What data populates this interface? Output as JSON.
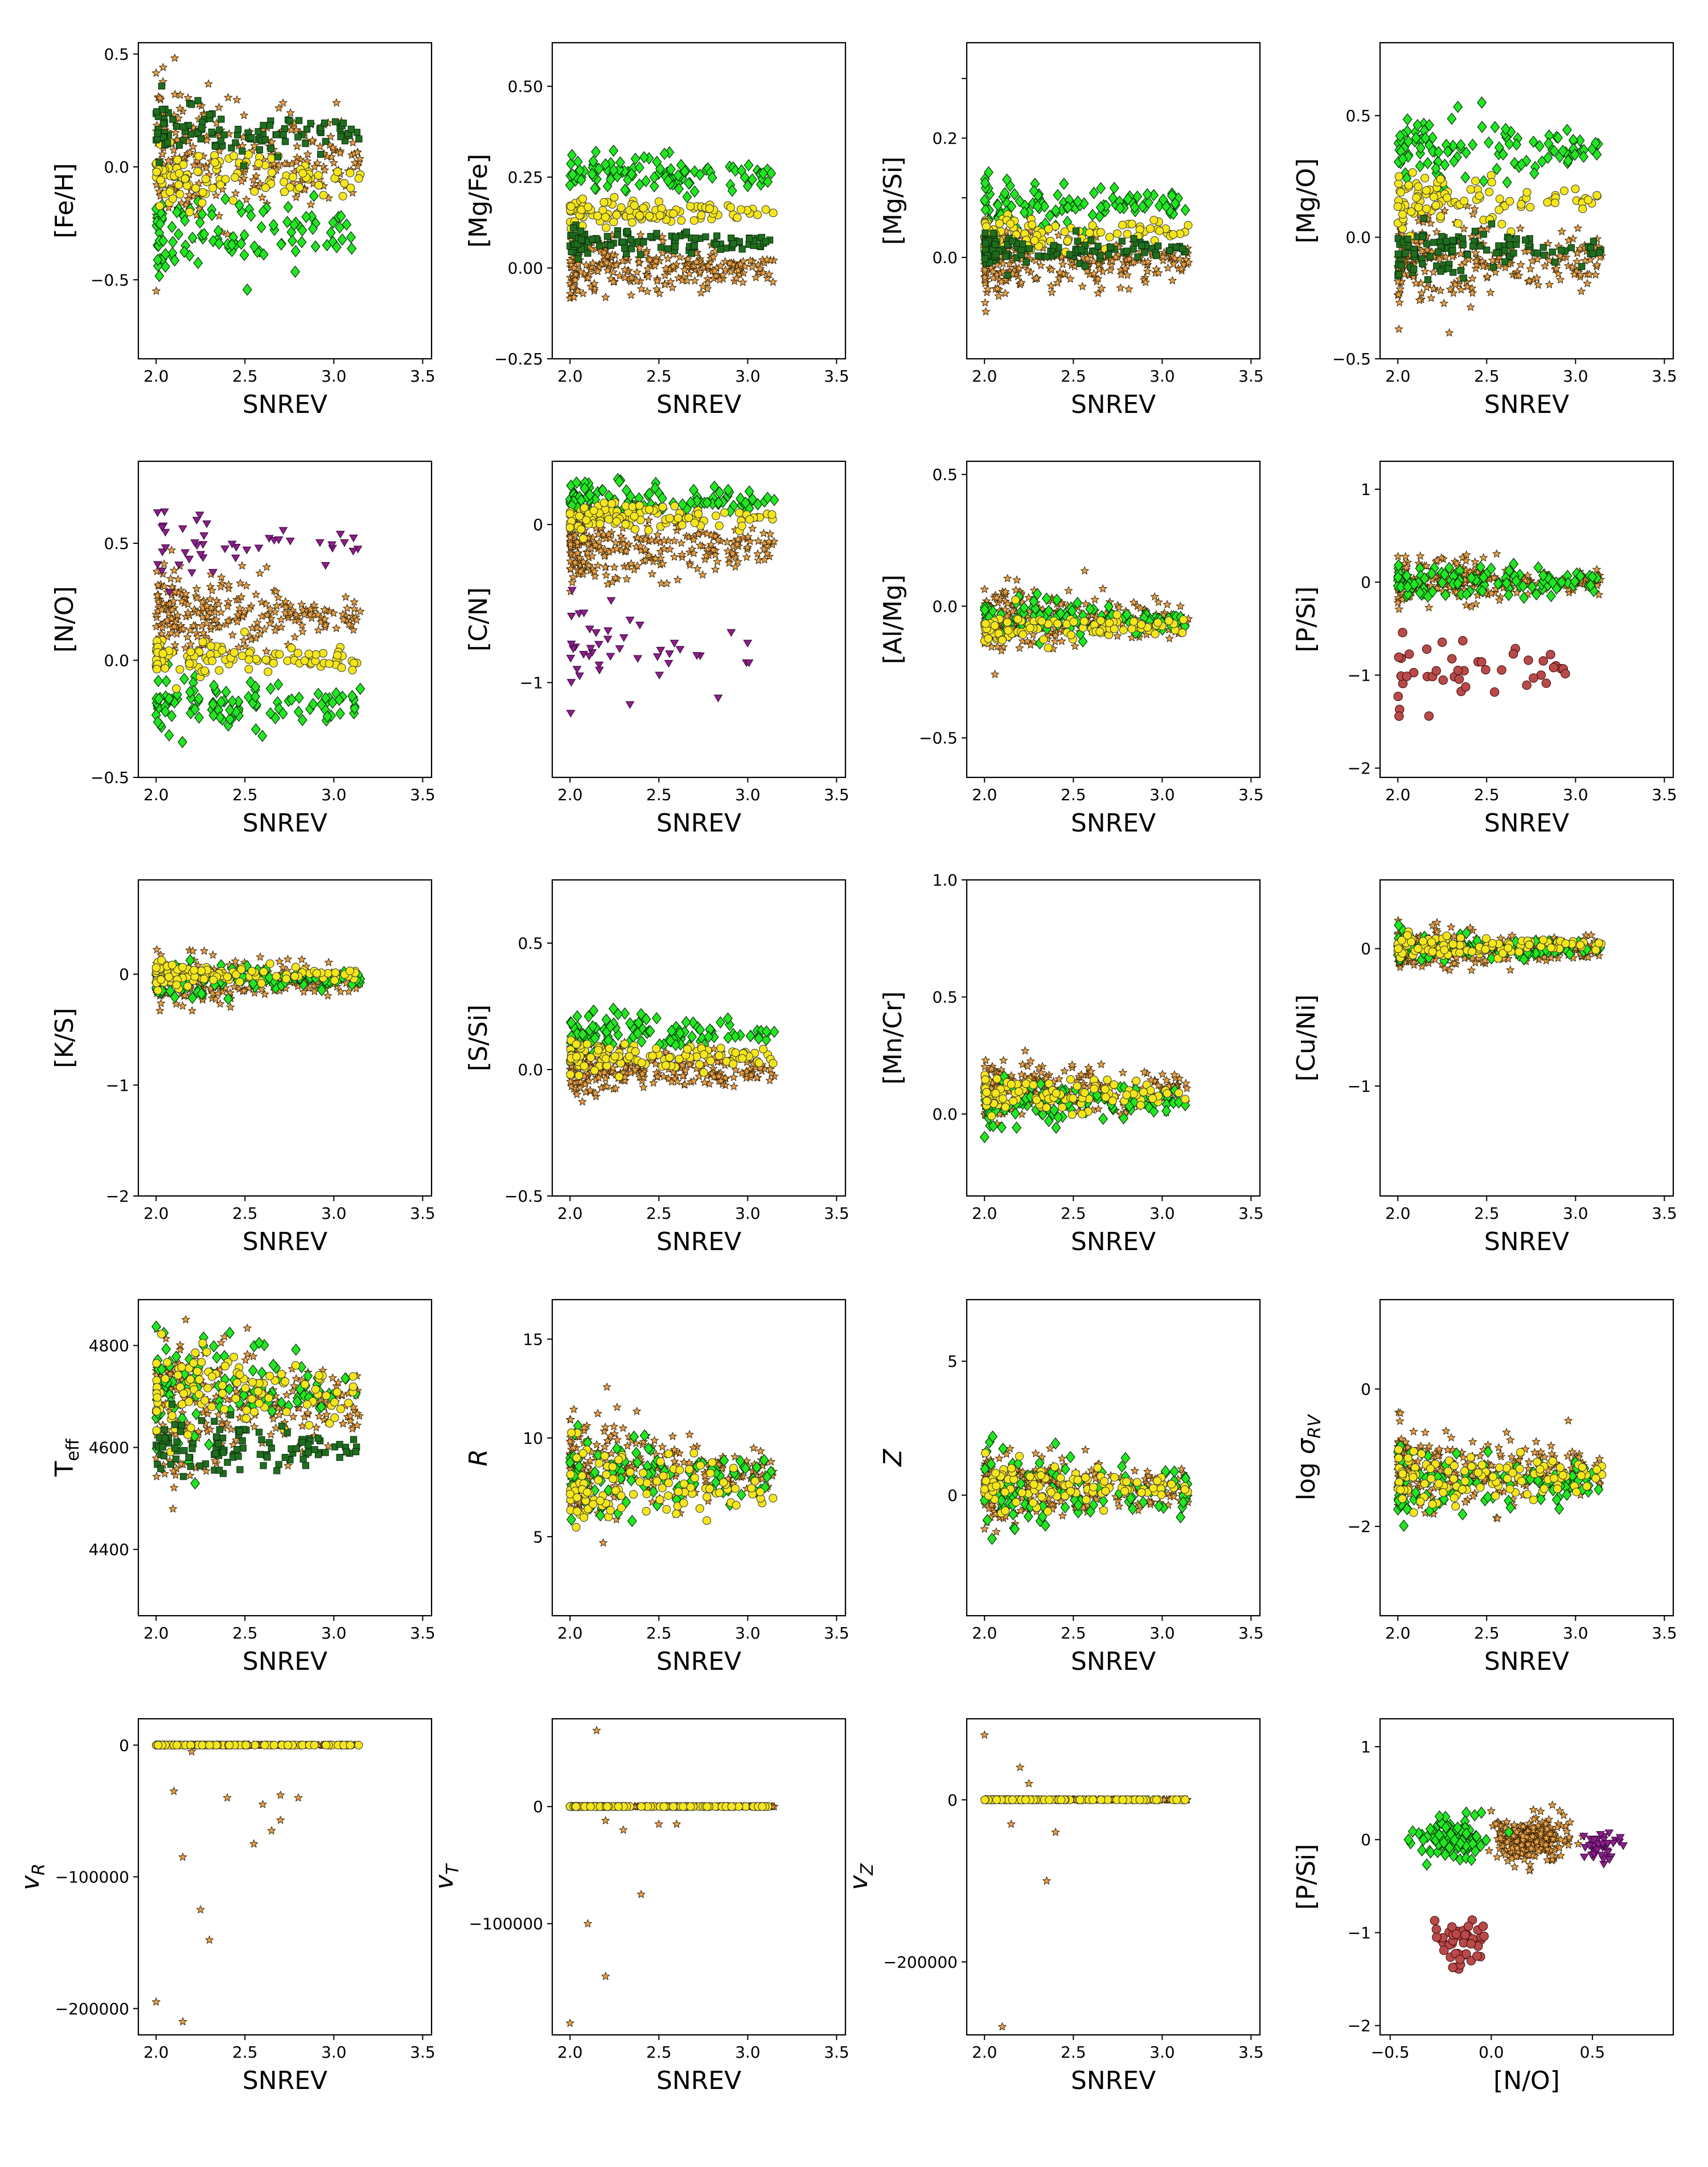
{
  "chart_data": [
    {
      "type": "scatter",
      "xlabel": "SNREV",
      "ylabel": "[Fe/H]",
      "xlim": [
        1.9,
        3.55
      ],
      "ylim": [
        -0.85,
        0.55
      ],
      "xticks": [
        2.0,
        2.5,
        3.0,
        3.5
      ],
      "yticks": [
        -0.5,
        0.0,
        0.5
      ],
      "ytick_labels": [
        "−0.5",
        "0.0",
        "0.5"
      ],
      "series_summary": [
        {
          "marker": "star-orange",
          "y_center": 0.05,
          "y_spread": 0.3
        },
        {
          "marker": "diamond-green",
          "y_center": -0.3,
          "y_spread": 0.2
        },
        {
          "marker": "circle-yellow",
          "y_center": -0.05,
          "y_spread": 0.12
        },
        {
          "marker": "square-darkgreen",
          "y_center": 0.15,
          "y_spread": 0.12
        }
      ]
    },
    {
      "type": "scatter",
      "xlabel": "SNREV",
      "ylabel": "[Mg/Fe]",
      "xlim": [
        1.9,
        3.55
      ],
      "ylim": [
        -0.25,
        0.62
      ],
      "xticks": [
        2.0,
        2.5,
        3.0,
        3.5
      ],
      "yticks": [
        -0.25,
        0.0,
        0.25,
        0.5
      ],
      "ytick_labels": [
        "−0.25",
        "0.00",
        "0.25",
        "0.50"
      ],
      "series_summary": [
        {
          "marker": "star-orange",
          "y_center": 0.0,
          "y_spread": 0.08
        },
        {
          "marker": "diamond-green",
          "y_center": 0.26,
          "y_spread": 0.06
        },
        {
          "marker": "circle-yellow",
          "y_center": 0.15,
          "y_spread": 0.04
        },
        {
          "marker": "square-darkgreen",
          "y_center": 0.07,
          "y_spread": 0.04
        }
      ]
    },
    {
      "type": "scatter",
      "xlabel": "SNREV",
      "ylabel": "[Mg/Si]",
      "xlim": [
        1.9,
        3.55
      ],
      "ylim": [
        -0.17,
        0.36
      ],
      "xticks": [
        2.0,
        2.5,
        3.0,
        3.5
      ],
      "yticks": [
        0.0,
        0.1,
        0.2,
        0.3
      ],
      "ytick_labels": [
        "0.0",
        "",
        "0.2",
        ""
      ],
      "series_summary": [
        {
          "marker": "star-orange",
          "y_center": -0.01,
          "y_spread": 0.05
        },
        {
          "marker": "diamond-green",
          "y_center": 0.09,
          "y_spread": 0.04
        },
        {
          "marker": "circle-yellow",
          "y_center": 0.04,
          "y_spread": 0.03
        },
        {
          "marker": "square-darkgreen",
          "y_center": 0.01,
          "y_spread": 0.03
        }
      ]
    },
    {
      "type": "scatter",
      "xlabel": "SNREV",
      "ylabel": "[Mg/O]",
      "xlim": [
        1.9,
        3.55
      ],
      "ylim": [
        -0.5,
        0.8
      ],
      "xticks": [
        2.0,
        2.5,
        3.0,
        3.5
      ],
      "yticks": [
        -0.5,
        0.0,
        0.5
      ],
      "ytick_labels": [
        "−0.5",
        "0.0",
        "0.5"
      ],
      "series_summary": [
        {
          "marker": "star-orange",
          "y_center": -0.1,
          "y_spread": 0.2
        },
        {
          "marker": "diamond-green",
          "y_center": 0.35,
          "y_spread": 0.15
        },
        {
          "marker": "circle-yellow",
          "y_center": 0.15,
          "y_spread": 0.1
        },
        {
          "marker": "square-darkgreen",
          "y_center": -0.05,
          "y_spread": 0.1
        }
      ]
    },
    {
      "type": "scatter",
      "xlabel": "SNREV",
      "ylabel": "[N/O]",
      "xlim": [
        1.9,
        3.55
      ],
      "ylim": [
        -0.5,
        0.85
      ],
      "xticks": [
        2.0,
        2.5,
        3.0,
        3.5
      ],
      "yticks": [
        -0.5,
        0.0,
        0.5
      ],
      "ytick_labels": [
        "−0.5",
        "0.0",
        "0.5"
      ],
      "series_summary": [
        {
          "marker": "star-orange",
          "y_center": 0.2,
          "y_spread": 0.18
        },
        {
          "marker": "diamond-green",
          "y_center": -0.18,
          "y_spread": 0.12
        },
        {
          "marker": "circle-yellow",
          "y_center": 0.0,
          "y_spread": 0.08
        },
        {
          "marker": "triangle-purple",
          "y_center": 0.5,
          "y_spread": 0.15
        }
      ]
    },
    {
      "type": "scatter",
      "xlabel": "SNREV",
      "ylabel": "[C/N]",
      "xlim": [
        1.9,
        3.55
      ],
      "ylim": [
        -1.6,
        0.4
      ],
      "xticks": [
        2.0,
        2.5,
        3.0,
        3.5
      ],
      "yticks": [
        -1.0,
        0.0
      ],
      "ytick_labels": [
        "−1",
        "0"
      ],
      "series_summary": [
        {
          "marker": "star-orange",
          "y_center": -0.15,
          "y_spread": 0.22
        },
        {
          "marker": "diamond-green",
          "y_center": 0.15,
          "y_spread": 0.12
        },
        {
          "marker": "circle-yellow",
          "y_center": 0.05,
          "y_spread": 0.1
        },
        {
          "marker": "triangle-purple",
          "y_center": -0.8,
          "y_spread": 0.3
        }
      ]
    },
    {
      "type": "scatter",
      "xlabel": "SNREV",
      "ylabel": "[Al/Mg]",
      "xlim": [
        1.9,
        3.55
      ],
      "ylim": [
        -0.65,
        0.55
      ],
      "xticks": [
        2.0,
        2.5,
        3.0,
        3.5
      ],
      "yticks": [
        -0.5,
        0.0,
        0.5
      ],
      "ytick_labels": [
        "−0.5",
        "0.0",
        "0.5"
      ],
      "series_summary": [
        {
          "marker": "star-orange",
          "y_center": -0.05,
          "y_spread": 0.12
        },
        {
          "marker": "diamond-green",
          "y_center": -0.05,
          "y_spread": 0.08
        },
        {
          "marker": "circle-yellow",
          "y_center": -0.08,
          "y_spread": 0.06
        }
      ]
    },
    {
      "type": "scatter",
      "xlabel": "SNREV",
      "ylabel": "[P/Si]",
      "xlim": [
        1.9,
        3.55
      ],
      "ylim": [
        -2.1,
        1.3
      ],
      "xticks": [
        2.0,
        2.5,
        3.0,
        3.5
      ],
      "yticks": [
        -2.0,
        -1.0,
        0.0,
        1.0
      ],
      "ytick_labels": [
        "−2",
        "−1",
        "0",
        "1"
      ],
      "series_summary": [
        {
          "marker": "star-orange",
          "y_center": 0.0,
          "y_spread": 0.25
        },
        {
          "marker": "diamond-green",
          "y_center": 0.0,
          "y_spread": 0.2
        },
        {
          "marker": "circle-brown",
          "y_center": -1.0,
          "y_spread": 0.4
        }
      ]
    },
    {
      "type": "scatter",
      "xlabel": "SNREV",
      "ylabel": "[K/S]",
      "xlim": [
        1.9,
        3.55
      ],
      "ylim": [
        -2.0,
        0.85
      ],
      "xticks": [
        2.0,
        2.5,
        3.0,
        3.5
      ],
      "yticks": [
        -2.0,
        -1.0,
        0.0
      ],
      "ytick_labels": [
        "−2",
        "−1",
        "0"
      ],
      "series_summary": [
        {
          "marker": "star-orange",
          "y_center": -0.05,
          "y_spread": 0.2
        },
        {
          "marker": "diamond-green",
          "y_center": -0.05,
          "y_spread": 0.15
        },
        {
          "marker": "circle-yellow",
          "y_center": 0.0,
          "y_spread": 0.1
        }
      ]
    },
    {
      "type": "scatter",
      "xlabel": "SNREV",
      "ylabel": "[S/Si]",
      "xlim": [
        1.9,
        3.55
      ],
      "ylim": [
        -0.5,
        0.75
      ],
      "xticks": [
        2.0,
        2.5,
        3.0,
        3.5
      ],
      "yticks": [
        -0.5,
        0.0,
        0.5
      ],
      "ytick_labels": [
        "−0.5",
        "0.0",
        "0.5"
      ],
      "series_summary": [
        {
          "marker": "star-orange",
          "y_center": 0.0,
          "y_spread": 0.1
        },
        {
          "marker": "diamond-green",
          "y_center": 0.15,
          "y_spread": 0.08
        },
        {
          "marker": "circle-yellow",
          "y_center": 0.05,
          "y_spread": 0.06
        }
      ]
    },
    {
      "type": "scatter",
      "xlabel": "SNREV",
      "ylabel": "[Mn/Cr]",
      "xlim": [
        1.9,
        3.55
      ],
      "ylim": [
        -0.35,
        1.0
      ],
      "xticks": [
        2.0,
        2.5,
        3.0,
        3.5
      ],
      "yticks": [
        0.0,
        0.5,
        1.0
      ],
      "ytick_labels": [
        "0.0",
        "0.5",
        "1.0"
      ],
      "series_summary": [
        {
          "marker": "star-orange",
          "y_center": 0.1,
          "y_spread": 0.12
        },
        {
          "marker": "diamond-green",
          "y_center": 0.05,
          "y_spread": 0.1
        },
        {
          "marker": "circle-yellow",
          "y_center": 0.08,
          "y_spread": 0.08
        }
      ]
    },
    {
      "type": "scatter",
      "xlabel": "SNREV",
      "ylabel": "[Cu/Ni]",
      "xlim": [
        1.9,
        3.55
      ],
      "ylim": [
        -1.8,
        0.5
      ],
      "xticks": [
        2.0,
        2.5,
        3.0,
        3.5
      ],
      "yticks": [
        -1.0,
        0.0
      ],
      "ytick_labels": [
        "−1",
        "0"
      ],
      "series_summary": [
        {
          "marker": "star-orange",
          "y_center": 0.0,
          "y_spread": 0.15
        },
        {
          "marker": "diamond-green",
          "y_center": 0.0,
          "y_spread": 0.1
        },
        {
          "marker": "circle-yellow",
          "y_center": 0.02,
          "y_spread": 0.08
        }
      ]
    },
    {
      "type": "scatter",
      "xlabel": "SNREV",
      "ylabel": "T_eff",
      "xlim": [
        1.9,
        3.55
      ],
      "ylim": [
        4270,
        4890
      ],
      "xticks": [
        2.0,
        2.5,
        3.0,
        3.5
      ],
      "yticks": [
        4400,
        4600,
        4800
      ],
      "ytick_labels": [
        "4400",
        "4600",
        "4800"
      ],
      "series_summary": [
        {
          "marker": "star-orange",
          "y_center": 4680,
          "y_spread": 130
        },
        {
          "marker": "diamond-green",
          "y_center": 4720,
          "y_spread": 110
        },
        {
          "marker": "circle-yellow",
          "y_center": 4700,
          "y_spread": 90
        },
        {
          "marker": "square-darkgreen",
          "y_center": 4600,
          "y_spread": 60
        }
      ]
    },
    {
      "type": "scatter",
      "xlabel": "SNREV",
      "ylabel": "R",
      "xlim": [
        1.9,
        3.55
      ],
      "ylim": [
        1.0,
        17.0
      ],
      "xticks": [
        2.0,
        2.5,
        3.0,
        3.5
      ],
      "yticks": [
        5,
        10,
        15
      ],
      "ytick_labels": [
        "5",
        "10",
        "15"
      ],
      "series_summary": [
        {
          "marker": "star-orange",
          "y_center": 8.5,
          "y_spread": 2.5
        },
        {
          "marker": "diamond-green",
          "y_center": 8.0,
          "y_spread": 2.0
        },
        {
          "marker": "circle-yellow",
          "y_center": 7.5,
          "y_spread": 1.8
        }
      ]
    },
    {
      "type": "scatter",
      "xlabel": "SNREV",
      "ylabel": "Z",
      "xlim": [
        1.9,
        3.55
      ],
      "ylim": [
        -4.5,
        7.3
      ],
      "xticks": [
        2.0,
        2.5,
        3.0,
        3.5
      ],
      "yticks": [
        0,
        5
      ],
      "ytick_labels": [
        "0",
        "5"
      ],
      "series_summary": [
        {
          "marker": "star-orange",
          "y_center": 0.3,
          "y_spread": 1.2
        },
        {
          "marker": "diamond-green",
          "y_center": 0.2,
          "y_spread": 1.5
        },
        {
          "marker": "circle-yellow",
          "y_center": 0.3,
          "y_spread": 0.8
        }
      ]
    },
    {
      "type": "scatter",
      "xlabel": "SNREV",
      "ylabel": "log σ_RV",
      "xlim": [
        1.9,
        3.55
      ],
      "ylim": [
        -3.3,
        1.3
      ],
      "xticks": [
        2.0,
        2.5,
        3.0,
        3.5
      ],
      "yticks": [
        -2,
        0
      ],
      "ytick_labels": [
        "−2",
        "0"
      ],
      "series_summary": [
        {
          "marker": "star-orange",
          "y_center": -1.2,
          "y_spread": 0.6
        },
        {
          "marker": "diamond-green",
          "y_center": -1.4,
          "y_spread": 0.5
        },
        {
          "marker": "circle-yellow",
          "y_center": -1.3,
          "y_spread": 0.4
        }
      ]
    },
    {
      "type": "scatter",
      "xlabel": "SNREV",
      "ylabel": "v_R",
      "xlim": [
        1.9,
        3.55
      ],
      "ylim": [
        -220000,
        20000
      ],
      "xticks": [
        2.0,
        2.5,
        3.0,
        3.5
      ],
      "yticks": [
        -200000,
        -100000,
        0
      ],
      "ytick_labels": [
        "−200000",
        "−100000",
        "0"
      ],
      "series_summary": [
        {
          "marker": "star-orange",
          "y_center": 0,
          "y_spread": 0
        },
        {
          "marker": "circle-yellow",
          "y_center": 0,
          "y_spread": 0
        }
      ],
      "outliers": [
        [
          2.0,
          -195000
        ],
        [
          2.15,
          -210000
        ],
        [
          2.15,
          -85000
        ],
        [
          2.2,
          -5000
        ],
        [
          2.1,
          -35000
        ],
        [
          2.25,
          -125000
        ],
        [
          2.3,
          -148000
        ],
        [
          2.4,
          -40000
        ],
        [
          2.55,
          -75000
        ],
        [
          2.6,
          -45000
        ],
        [
          2.65,
          -65000
        ],
        [
          2.7,
          -57000
        ],
        [
          2.7,
          -38000
        ],
        [
          2.8,
          -40000
        ]
      ]
    },
    {
      "type": "scatter",
      "xlabel": "SNREV",
      "ylabel": "v_T",
      "xlim": [
        1.9,
        3.55
      ],
      "ylim": [
        -195000,
        75000
      ],
      "xticks": [
        2.0,
        2.5,
        3.0,
        3.5
      ],
      "yticks": [
        -100000,
        0
      ],
      "ytick_labels": [
        "−100000",
        "0"
      ],
      "series_summary": [
        {
          "marker": "star-orange",
          "y_center": 0,
          "y_spread": 0
        },
        {
          "marker": "circle-yellow",
          "y_center": 0,
          "y_spread": 0
        }
      ],
      "outliers": [
        [
          2.15,
          65000
        ],
        [
          2.1,
          -100000
        ],
        [
          2.2,
          -145000
        ],
        [
          2.0,
          -185000
        ],
        [
          2.4,
          -75000
        ],
        [
          2.3,
          -20000
        ],
        [
          2.5,
          -15000
        ],
        [
          2.6,
          -15000
        ],
        [
          2.2,
          -12000
        ]
      ]
    },
    {
      "type": "scatter",
      "xlabel": "SNREV",
      "ylabel": "v_Z",
      "xlim": [
        1.9,
        3.55
      ],
      "ylim": [
        -290000,
        100000
      ],
      "xticks": [
        2.0,
        2.5,
        3.0,
        3.5
      ],
      "yticks": [
        -200000,
        0
      ],
      "ytick_labels": [
        "−200000",
        "0"
      ],
      "series_summary": [
        {
          "marker": "star-orange",
          "y_center": 0,
          "y_spread": 0
        },
        {
          "marker": "circle-yellow",
          "y_center": 0,
          "y_spread": 0
        }
      ],
      "outliers": [
        [
          2.0,
          80000
        ],
        [
          2.2,
          40000
        ],
        [
          2.25,
          20000
        ],
        [
          2.35,
          -100000
        ],
        [
          2.1,
          -280000
        ],
        [
          2.15,
          -30000
        ],
        [
          2.4,
          -40000
        ]
      ]
    },
    {
      "type": "scatter",
      "xlabel": "[N/O]",
      "ylabel": "[P/Si]",
      "xlim": [
        -0.55,
        0.9
      ],
      "ylim": [
        -2.1,
        1.3
      ],
      "xticks": [
        -0.5,
        0.0,
        0.5
      ],
      "xtick_labels": [
        "−0.5",
        "0.0",
        "0.5"
      ],
      "yticks": [
        -2.0,
        -1.0,
        0.0,
        1.0
      ],
      "ytick_labels": [
        "−2",
        "−1",
        "0",
        "1"
      ],
      "series_summary": [
        {
          "marker": "star-orange",
          "x_center": 0.2,
          "y_center": 0.0,
          "x_spread": 0.2,
          "y_spread": 0.25
        },
        {
          "marker": "diamond-green",
          "x_center": -0.2,
          "y_center": 0.0,
          "x_spread": 0.15,
          "y_spread": 0.2
        },
        {
          "marker": "triangle-purple",
          "x_center": 0.55,
          "y_center": -0.05,
          "x_spread": 0.1,
          "y_spread": 0.15
        },
        {
          "marker": "circle-brown",
          "x_center": -0.15,
          "y_center": -1.1,
          "x_spread": 0.15,
          "y_spread": 0.3
        }
      ]
    }
  ],
  "colors": {
    "star-orange": "#e8a04a",
    "diamond-green": "#22e622",
    "circle-yellow": "#f5e61a",
    "square-darkgreen": "#1f6e1f",
    "triangle-purple": "#8a1f8a",
    "circle-brown": "#b84a4a",
    "triangle-pink": "#d07090",
    "dot-grey": "#b0b0b0",
    "black": "#000000"
  }
}
